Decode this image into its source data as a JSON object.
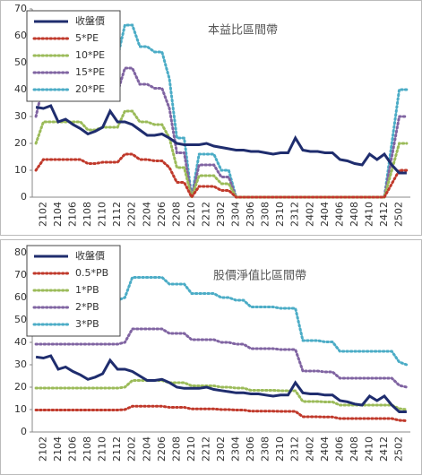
{
  "chart_data": [
    {
      "type": "line",
      "title": "本益比區間帶",
      "categories": [
        null,
        "2102",
        null,
        "2104",
        null,
        "2106",
        null,
        "2108",
        null,
        "2110",
        null,
        "2112",
        null,
        "2202",
        null,
        "2204",
        null,
        "2206",
        null,
        "2208",
        null,
        "2210",
        null,
        "2212",
        null,
        "2302",
        null,
        "2304",
        null,
        "2306",
        null,
        "2308",
        null,
        "2310",
        null,
        "2312",
        null,
        "2402",
        null,
        "2404",
        null,
        "2406",
        null,
        "2408",
        null,
        "2410",
        null,
        "2412",
        null,
        "2502",
        null
      ],
      "ylim": [
        0,
        70
      ],
      "yticks": [
        0,
        10,
        20,
        30,
        40,
        50,
        60,
        70
      ],
      "series": [
        {
          "name": "收盤價",
          "color": "#1f2d6e",
          "values": [
            33.5,
            33,
            34,
            28,
            29,
            27,
            25.5,
            23.5,
            24.5,
            26,
            32,
            28,
            28,
            27,
            25,
            23,
            23,
            23.5,
            22,
            20,
            19.5,
            19.5,
            19.5,
            20,
            19,
            18.5,
            18,
            17.5,
            17.5,
            17,
            17,
            16.5,
            16,
            16.5,
            16.5,
            22,
            17.5,
            17,
            17,
            16.5,
            16.5,
            14,
            13.5,
            12.5,
            12,
            16,
            14,
            16,
            12,
            9,
            9
          ]
        },
        {
          "name": "5*PE",
          "color": "#c0392b",
          "values": [
            10,
            14,
            14,
            14,
            14,
            14,
            14,
            12.5,
            12.5,
            13,
            13,
            13,
            16,
            16,
            14,
            14,
            13.5,
            13.5,
            11,
            5.5,
            5.5,
            0,
            4,
            4,
            4,
            2.5,
            2.5,
            0,
            0,
            0,
            0,
            0,
            0,
            0,
            0,
            0,
            0,
            0,
            0,
            0,
            0,
            0,
            0,
            0,
            0,
            0,
            0,
            0,
            5,
            10,
            10
          ]
        },
        {
          "name": "10*PE",
          "color": "#9bbb59",
          "values": [
            20,
            28,
            28,
            28,
            28,
            28,
            28,
            25,
            25,
            26,
            26,
            26,
            32,
            32,
            28,
            28,
            27,
            27,
            22,
            11,
            11,
            0,
            8,
            8,
            8,
            5,
            5,
            0,
            0,
            0,
            0,
            0,
            0,
            0,
            0,
            0,
            0,
            0,
            0,
            0,
            0,
            0,
            0,
            0,
            0,
            0,
            0,
            0,
            10,
            20,
            20
          ]
        },
        {
          "name": "15*PE",
          "color": "#8064a2",
          "values": [
            30,
            42,
            42,
            42,
            42,
            42,
            42,
            37.5,
            37.5,
            39,
            39,
            39,
            48,
            48,
            42,
            42,
            40.5,
            40.5,
            33,
            16.5,
            16.5,
            0,
            12,
            12,
            12,
            7.5,
            7.5,
            0,
            0,
            0,
            0,
            0,
            0,
            0,
            0,
            0,
            0,
            0,
            0,
            0,
            0,
            0,
            0,
            0,
            0,
            0,
            0,
            0,
            15,
            30,
            30
          ]
        },
        {
          "name": "20*PE",
          "color": "#4bacc6",
          "values": [
            40,
            56,
            56,
            56,
            56,
            56,
            56,
            50,
            50,
            52,
            52,
            52,
            64,
            64,
            56,
            56,
            54,
            54,
            44,
            22,
            22,
            0,
            16,
            16,
            16,
            10,
            10,
            0,
            0,
            0,
            0,
            0,
            0,
            0,
            0,
            0,
            0,
            0,
            0,
            0,
            0,
            0,
            0,
            0,
            0,
            0,
            0,
            0,
            20,
            40,
            40
          ]
        }
      ]
    },
    {
      "type": "line",
      "title": "股價淨值比區間帶",
      "categories": [
        null,
        "2102",
        null,
        "2104",
        null,
        "2106",
        null,
        "2108",
        null,
        "2110",
        null,
        "2112",
        null,
        "2202",
        null,
        "2204",
        null,
        "2206",
        null,
        "2208",
        null,
        "2210",
        null,
        "2212",
        null,
        "2302",
        null,
        "2304",
        null,
        "2306",
        null,
        "2308",
        null,
        "2310",
        null,
        "2312",
        null,
        "2402",
        null,
        "2404",
        null,
        "2406",
        null,
        "2408",
        null,
        "2410",
        null,
        "2412",
        null,
        "2502",
        null
      ],
      "ylim": [
        0,
        80
      ],
      "yticks": [
        0,
        10,
        20,
        30,
        40,
        50,
        60,
        70,
        80
      ],
      "series": [
        {
          "name": "收盤價",
          "color": "#1f2d6e",
          "values": [
            33.5,
            33,
            34,
            28,
            29,
            27,
            25.5,
            23.5,
            24.5,
            26,
            32,
            28,
            28,
            27,
            25,
            23,
            23,
            23.5,
            22,
            20,
            19.5,
            19.5,
            19.5,
            20,
            19,
            18.5,
            18,
            17.5,
            17.5,
            17,
            17,
            16.5,
            16,
            16.5,
            16.5,
            22,
            17.5,
            17,
            17,
            16.5,
            16.5,
            14,
            13.5,
            12.5,
            12,
            16,
            14,
            16,
            12,
            9,
            9
          ]
        },
        {
          "name": "0.5*PB",
          "color": "#c0392b",
          "values": [
            9.8,
            9.8,
            9.8,
            9.8,
            9.8,
            9.8,
            9.8,
            9.8,
            9.8,
            9.8,
            9.8,
            9.8,
            10,
            11.5,
            11.5,
            11.5,
            11.5,
            11.5,
            11,
            11,
            11,
            10.3,
            10.3,
            10.3,
            10.3,
            10,
            10,
            9.8,
            9.8,
            9.3,
            9.3,
            9.3,
            9.3,
            9.2,
            9.2,
            9.2,
            6.8,
            6.8,
            6.8,
            6.7,
            6.7,
            6,
            6,
            6,
            6,
            6,
            6,
            6,
            6,
            5.2,
            5
          ]
        },
        {
          "name": "1*PB",
          "color": "#9bbb59",
          "values": [
            19.6,
            19.6,
            19.6,
            19.6,
            19.6,
            19.6,
            19.6,
            19.6,
            19.6,
            19.6,
            19.6,
            19.6,
            20,
            23,
            23,
            23,
            23,
            23,
            22,
            22,
            22,
            20.6,
            20.6,
            20.6,
            20.6,
            20,
            20,
            19.6,
            19.6,
            18.6,
            18.6,
            18.6,
            18.6,
            18.4,
            18.4,
            18.4,
            13.6,
            13.6,
            13.6,
            13.4,
            13.4,
            12,
            12,
            12,
            12,
            12,
            12,
            12,
            12,
            10.4,
            10
          ]
        },
        {
          "name": "2*PB",
          "color": "#8064a2",
          "values": [
            39.2,
            39.2,
            39.2,
            39.2,
            39.2,
            39.2,
            39.2,
            39.2,
            39.2,
            39.2,
            39.2,
            39.2,
            40,
            46,
            46,
            46,
            46,
            46,
            44,
            44,
            44,
            41.2,
            41.2,
            41.2,
            41.2,
            40,
            40,
            39.2,
            39.2,
            37.2,
            37.2,
            37.2,
            37.2,
            36.8,
            36.8,
            36.8,
            27.2,
            27.2,
            27.2,
            26.8,
            26.8,
            24,
            24,
            24,
            24,
            24,
            24,
            24,
            24,
            20.8,
            20
          ]
        },
        {
          "name": "3*PB",
          "color": "#4bacc6",
          "values": [
            58.8,
            58.8,
            58.8,
            58.8,
            58.8,
            58.8,
            58.8,
            58.8,
            58.8,
            58.8,
            58.8,
            58.8,
            60,
            69,
            69,
            69,
            69,
            69,
            66,
            66,
            66,
            61.8,
            61.8,
            61.8,
            61.8,
            60,
            60,
            58.8,
            58.8,
            55.8,
            55.8,
            55.8,
            55.8,
            55.2,
            55.2,
            55.2,
            40.8,
            40.8,
            40.8,
            40.2,
            40.2,
            36,
            36,
            36,
            36,
            36,
            36,
            36,
            36,
            31.2,
            30
          ]
        }
      ]
    }
  ]
}
